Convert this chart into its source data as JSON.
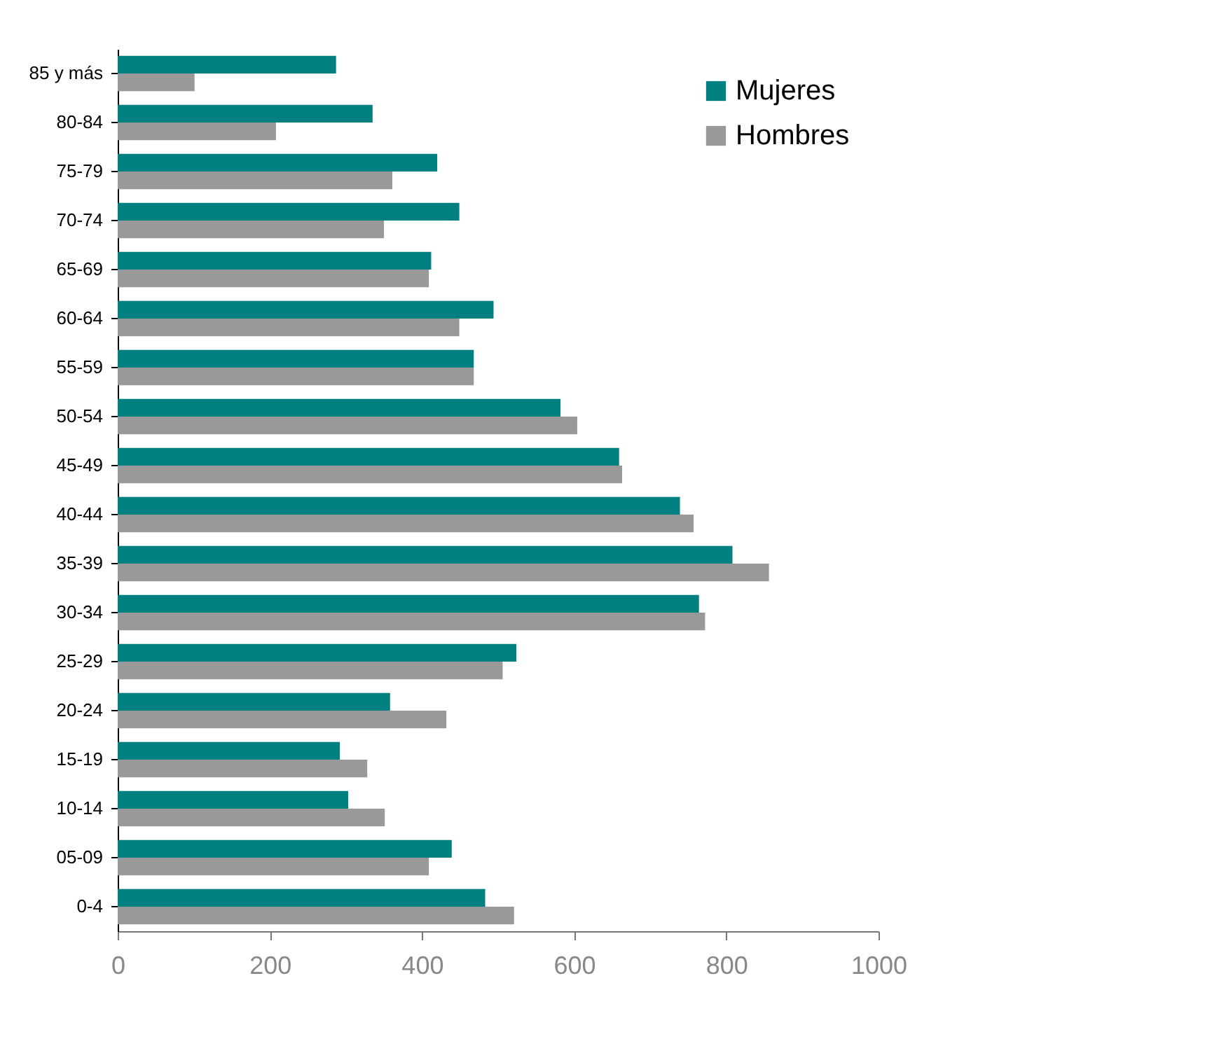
{
  "chart_data": {
    "type": "bar",
    "orientation": "horizontal",
    "categories": [
      "85 y más",
      "80-84",
      "75-79",
      "70-74",
      "65-69",
      "60-64",
      "55-59",
      "50-54",
      "45-49",
      "40-44",
      "35-39",
      "30-34",
      "25-29",
      "20-24",
      "15-19",
      "10-14",
      "05-09",
      "0-4"
    ],
    "series": [
      {
        "name": "Mujeres",
        "color": "#008080",
        "values": [
          287,
          335,
          420,
          449,
          412,
          494,
          468,
          582,
          659,
          739,
          808,
          764,
          524,
          358,
          292,
          303,
          439,
          483
        ]
      },
      {
        "name": "Hombres",
        "color": "#999999",
        "values": [
          101,
          208,
          361,
          350,
          409,
          449,
          468,
          604,
          663,
          757,
          856,
          772,
          506,
          432,
          328,
          351,
          409,
          521
        ]
      }
    ],
    "xlim": [
      0,
      1000
    ],
    "xticks": [
      0,
      200,
      400,
      600,
      800,
      1000
    ],
    "grid": false,
    "legend": "top right"
  }
}
